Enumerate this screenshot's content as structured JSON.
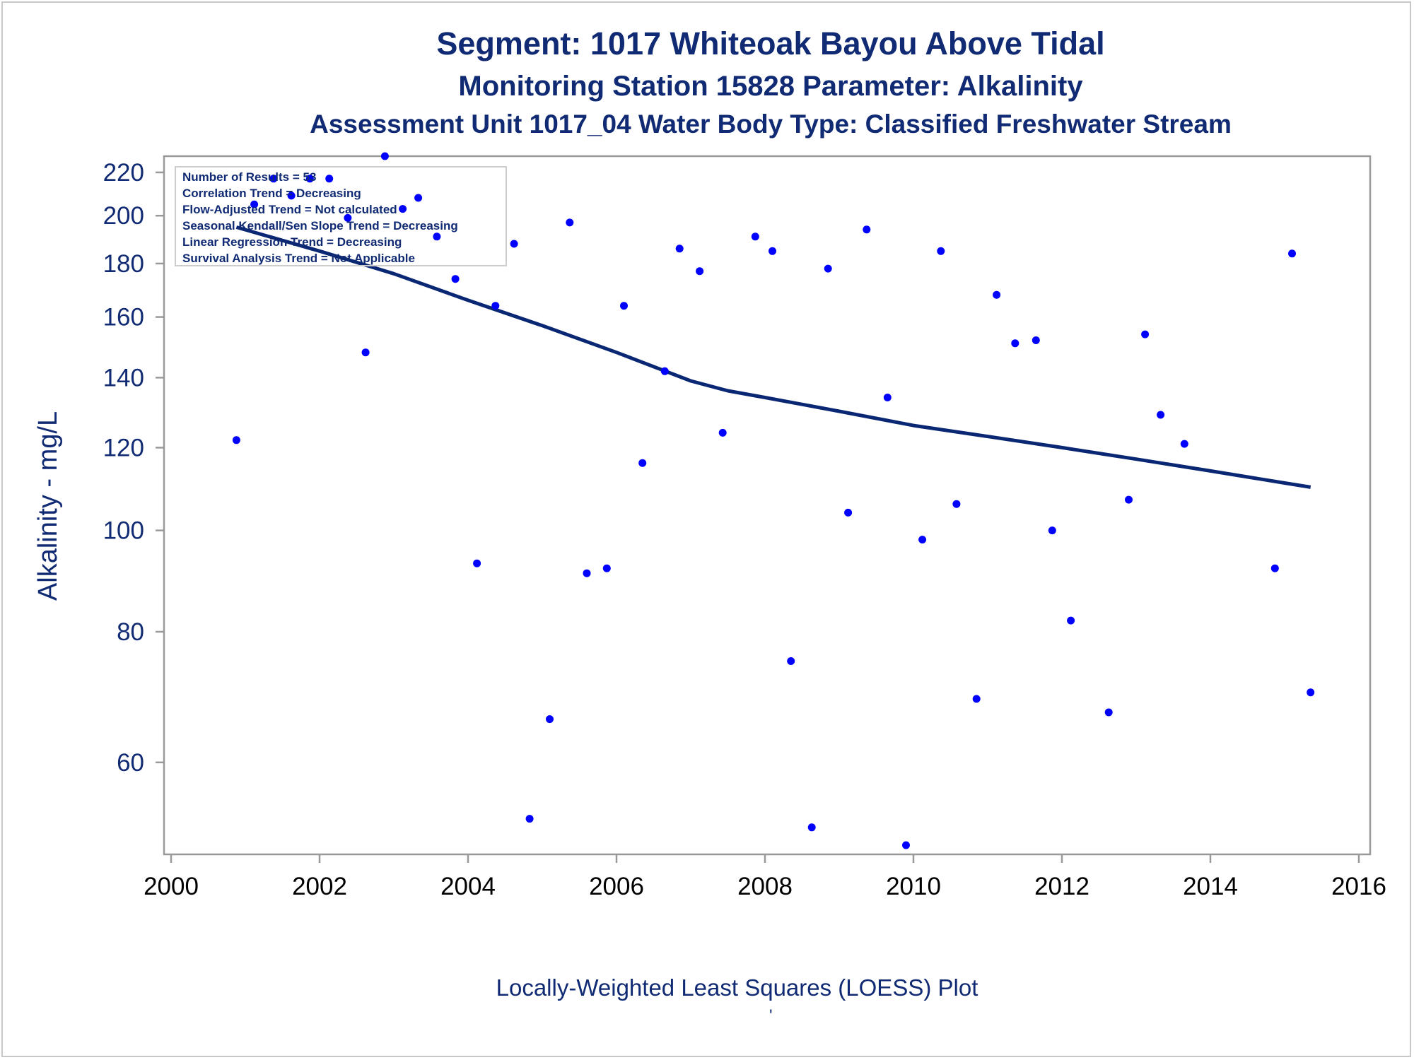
{
  "titles": {
    "line1": "Segment: 1017  Whiteoak Bayou Above Tidal",
    "line2": "Monitoring Station 15828 Parameter: Alkalinity",
    "line3": "Assessment Unit 1017_04   Water Body Type: Classified Freshwater Stream"
  },
  "footer": "Locally-Weighted Least Squares (LOESS) Plot",
  "footer_mark": "'",
  "chart_data": {
    "type": "scatter",
    "ylabel": "Alkalinity - mg/L",
    "xlabel": "",
    "x_ticks": [
      2000,
      2002,
      2004,
      2006,
      2008,
      2010,
      2012,
      2014,
      2016
    ],
    "y_ticks": [
      60,
      80,
      100,
      120,
      140,
      160,
      180,
      200,
      220
    ],
    "xlim": [
      2000,
      2016
    ],
    "ylim": [
      49,
      228
    ],
    "y_scale": "log",
    "legend": {
      "placement": "top-left",
      "lines": [
        "Number of Results = 53",
        "Correlation Trend = Decreasing",
        "Flow-Adjusted Trend = Not calculated",
        "Seasonal Kendall/Sen Slope Trend = Decreasing",
        "Linear Regression Trend = Decreasing",
        "Survival Analysis Trend = Not Applicable"
      ]
    },
    "colors": {
      "points": "#0000ff",
      "line": "#0a2774",
      "text": "#102a73",
      "axis": "#999999"
    },
    "series": [
      {
        "type": "scatter",
        "points": [
          [
            2000.88,
            122
          ],
          [
            2001.12,
            205
          ],
          [
            2001.38,
            217
          ],
          [
            2001.62,
            209
          ],
          [
            2001.87,
            217
          ],
          [
            2002.13,
            217
          ],
          [
            2002.38,
            199
          ],
          [
            2002.62,
            148
          ],
          [
            2002.88,
            228
          ],
          [
            2003.12,
            203
          ],
          [
            2003.33,
            208
          ],
          [
            2003.58,
            191
          ],
          [
            2003.83,
            174
          ],
          [
            2004.12,
            93
          ],
          [
            2004.37,
            164
          ],
          [
            2004.62,
            188
          ],
          [
            2004.83,
            53
          ],
          [
            2005.1,
            66
          ],
          [
            2005.37,
            197
          ],
          [
            2005.6,
            91
          ],
          [
            2005.87,
            92
          ],
          [
            2006.1,
            164
          ],
          [
            2006.35,
            116
          ],
          [
            2006.65,
            142
          ],
          [
            2006.85,
            186
          ],
          [
            2007.12,
            177
          ],
          [
            2007.43,
            124
          ],
          [
            2007.87,
            191
          ],
          [
            2008.1,
            185
          ],
          [
            2008.35,
            75
          ],
          [
            2008.63,
            52
          ],
          [
            2008.85,
            178
          ],
          [
            2009.12,
            104
          ],
          [
            2009.37,
            194
          ],
          [
            2009.65,
            134
          ],
          [
            2009.9,
            50
          ],
          [
            2010.12,
            98
          ],
          [
            2010.37,
            185
          ],
          [
            2010.58,
            106
          ],
          [
            2010.85,
            69
          ],
          [
            2011.12,
            168
          ],
          [
            2011.37,
            151
          ],
          [
            2011.65,
            152
          ],
          [
            2011.87,
            100
          ],
          [
            2012.12,
            82
          ],
          [
            2012.63,
            67
          ],
          [
            2012.9,
            107
          ],
          [
            2013.12,
            154
          ],
          [
            2013.33,
            129
          ],
          [
            2013.65,
            121
          ],
          [
            2014.87,
            92
          ],
          [
            2015.1,
            184
          ],
          [
            2015.35,
            70
          ]
        ]
      },
      {
        "type": "line",
        "points": [
          [
            2000.88,
            195
          ],
          [
            2002.0,
            185
          ],
          [
            2003.0,
            176
          ],
          [
            2004.0,
            166
          ],
          [
            2005.0,
            157
          ],
          [
            2006.0,
            148
          ],
          [
            2007.0,
            139
          ],
          [
            2007.5,
            136
          ],
          [
            2008.0,
            134
          ],
          [
            2009.0,
            130
          ],
          [
            2010.0,
            126
          ],
          [
            2011.0,
            123
          ],
          [
            2012.0,
            120
          ],
          [
            2013.0,
            117
          ],
          [
            2014.0,
            114
          ],
          [
            2015.0,
            111
          ],
          [
            2015.35,
            110
          ]
        ]
      }
    ]
  }
}
